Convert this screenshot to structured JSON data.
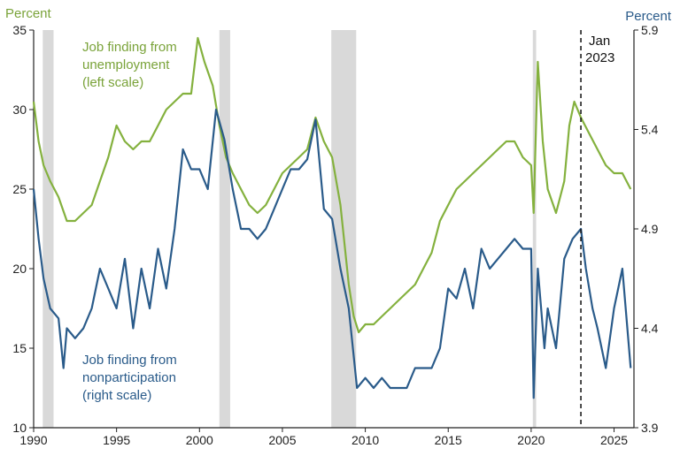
{
  "chart_data": {
    "type": "line",
    "left_axis_title": "Percent",
    "right_axis_title": "Percent",
    "x_range": [
      1990,
      2026.2
    ],
    "x_ticks": [
      "1990",
      "1995",
      "2000",
      "2005",
      "2010",
      "2015",
      "2020",
      "2025"
    ],
    "y_left_range": [
      10,
      35
    ],
    "y_left_ticks": [
      "10",
      "15",
      "20",
      "25",
      "30",
      "35"
    ],
    "y_right_range": [
      3.9,
      5.9
    ],
    "y_right_ticks": [
      "3.9",
      "4.4",
      "4.9",
      "5.4",
      "5.9"
    ],
    "grid": false,
    "recessions": [
      [
        1990.55,
        1991.2
      ],
      [
        2001.2,
        2001.85
      ],
      [
        2007.95,
        2009.45
      ],
      [
        2020.1,
        2020.3
      ]
    ],
    "marker": {
      "x": 2023.0,
      "label_line1": "Jan",
      "label_line2": "2023"
    },
    "colors": {
      "green": "#84b13e",
      "blue": "#2a5b8a",
      "recession": "#d9d9d9",
      "axis": "#222222"
    },
    "series": [
      {
        "name": "Job finding from unemployment (left scale)",
        "label_lines": [
          "Job finding from",
          "unemployment",
          "(left scale)"
        ],
        "axis": "left",
        "color": "#84b13e",
        "points": [
          [
            1990,
            30.5
          ],
          [
            1990.3,
            28
          ],
          [
            1990.6,
            26.5
          ],
          [
            1991,
            25.5
          ],
          [
            1991.5,
            24.5
          ],
          [
            1992,
            23
          ],
          [
            1992.5,
            23
          ],
          [
            1993,
            23.5
          ],
          [
            1993.5,
            24
          ],
          [
            1994,
            25.5
          ],
          [
            1994.5,
            27
          ],
          [
            1995,
            29
          ],
          [
            1995.5,
            28
          ],
          [
            1996,
            27.5
          ],
          [
            1996.5,
            28
          ],
          [
            1997,
            28
          ],
          [
            1997.5,
            29
          ],
          [
            1998,
            30
          ],
          [
            1998.5,
            30.5
          ],
          [
            1999,
            31
          ],
          [
            1999.5,
            31
          ],
          [
            1999.9,
            34.5
          ],
          [
            2000.3,
            33
          ],
          [
            2000.8,
            31.5
          ],
          [
            2001.2,
            29
          ],
          [
            2001.6,
            27
          ],
          [
            2002,
            26
          ],
          [
            2002.5,
            25
          ],
          [
            2003,
            24
          ],
          [
            2003.5,
            23.5
          ],
          [
            2004,
            24
          ],
          [
            2004.5,
            25
          ],
          [
            2005,
            26
          ],
          [
            2005.5,
            26.5
          ],
          [
            2006,
            27
          ],
          [
            2006.5,
            27.5
          ],
          [
            2007,
            29.5
          ],
          [
            2007.5,
            28
          ],
          [
            2008,
            27
          ],
          [
            2008.5,
            24
          ],
          [
            2009,
            19
          ],
          [
            2009.3,
            17
          ],
          [
            2009.6,
            16
          ],
          [
            2010,
            16.5
          ],
          [
            2010.5,
            16.5
          ],
          [
            2011,
            17
          ],
          [
            2011.5,
            17.5
          ],
          [
            2012,
            18
          ],
          [
            2012.5,
            18.5
          ],
          [
            2013,
            19
          ],
          [
            2013.5,
            20
          ],
          [
            2014,
            21
          ],
          [
            2014.5,
            23
          ],
          [
            2015,
            24
          ],
          [
            2015.5,
            25
          ],
          [
            2016,
            25.5
          ],
          [
            2016.5,
            26
          ],
          [
            2017,
            26.5
          ],
          [
            2017.5,
            27
          ],
          [
            2018,
            27.5
          ],
          [
            2018.5,
            28
          ],
          [
            2019,
            28
          ],
          [
            2019.5,
            27
          ],
          [
            2020,
            26.5
          ],
          [
            2020.15,
            23.5
          ],
          [
            2020.4,
            33
          ],
          [
            2020.7,
            28
          ],
          [
            2021,
            25
          ],
          [
            2021.5,
            23.5
          ],
          [
            2022,
            25.5
          ],
          [
            2022.3,
            29
          ],
          [
            2022.6,
            30.5
          ],
          [
            2023,
            29.5
          ],
          [
            2023.5,
            28.5
          ],
          [
            2024,
            27.5
          ],
          [
            2024.5,
            26.5
          ],
          [
            2025,
            26
          ],
          [
            2025.5,
            26
          ],
          [
            2026,
            25
          ]
        ]
      },
      {
        "name": "Job finding from nonparticipation (right scale)",
        "label_lines": [
          "Job finding from",
          "nonparticipation",
          "(right scale)"
        ],
        "axis": "right",
        "color": "#2a5b8a",
        "points": [
          [
            1990,
            5.1
          ],
          [
            1990.3,
            4.85
          ],
          [
            1990.6,
            4.65
          ],
          [
            1991,
            4.5
          ],
          [
            1991.5,
            4.45
          ],
          [
            1991.8,
            4.2
          ],
          [
            1992,
            4.4
          ],
          [
            1992.5,
            4.35
          ],
          [
            1993,
            4.4
          ],
          [
            1993.5,
            4.5
          ],
          [
            1994,
            4.7
          ],
          [
            1994.5,
            4.6
          ],
          [
            1995,
            4.5
          ],
          [
            1995.5,
            4.75
          ],
          [
            1996,
            4.4
          ],
          [
            1996.5,
            4.7
          ],
          [
            1997,
            4.5
          ],
          [
            1997.5,
            4.8
          ],
          [
            1998,
            4.6
          ],
          [
            1998.5,
            4.9
          ],
          [
            1999,
            5.3
          ],
          [
            1999.5,
            5.2
          ],
          [
            2000,
            5.2
          ],
          [
            2000.5,
            5.1
          ],
          [
            2001,
            5.5
          ],
          [
            2001.5,
            5.35
          ],
          [
            2002,
            5.1
          ],
          [
            2002.5,
            4.9
          ],
          [
            2003,
            4.9
          ],
          [
            2003.5,
            4.85
          ],
          [
            2004,
            4.9
          ],
          [
            2004.5,
            5.0
          ],
          [
            2005,
            5.1
          ],
          [
            2005.5,
            5.2
          ],
          [
            2006,
            5.2
          ],
          [
            2006.5,
            5.25
          ],
          [
            2007,
            5.45
          ],
          [
            2007.5,
            5.0
          ],
          [
            2008,
            4.95
          ],
          [
            2008.5,
            4.7
          ],
          [
            2009,
            4.5
          ],
          [
            2009.5,
            4.1
          ],
          [
            2010,
            4.15
          ],
          [
            2010.5,
            4.1
          ],
          [
            2011,
            4.15
          ],
          [
            2011.5,
            4.1
          ],
          [
            2012,
            4.1
          ],
          [
            2012.5,
            4.1
          ],
          [
            2013,
            4.2
          ],
          [
            2013.5,
            4.2
          ],
          [
            2014,
            4.2
          ],
          [
            2014.5,
            4.3
          ],
          [
            2015,
            4.6
          ],
          [
            2015.5,
            4.55
          ],
          [
            2016,
            4.7
          ],
          [
            2016.5,
            4.5
          ],
          [
            2017,
            4.8
          ],
          [
            2017.5,
            4.7
          ],
          [
            2018,
            4.75
          ],
          [
            2018.5,
            4.8
          ],
          [
            2019,
            4.85
          ],
          [
            2019.5,
            4.8
          ],
          [
            2020,
            4.8
          ],
          [
            2020.15,
            4.05
          ],
          [
            2020.4,
            4.7
          ],
          [
            2020.8,
            4.3
          ],
          [
            2021,
            4.5
          ],
          [
            2021.5,
            4.3
          ],
          [
            2022,
            4.75
          ],
          [
            2022.5,
            4.85
          ],
          [
            2023,
            4.9
          ],
          [
            2023.3,
            4.7
          ],
          [
            2023.7,
            4.5
          ],
          [
            2024,
            4.4
          ],
          [
            2024.5,
            4.2
          ],
          [
            2025,
            4.5
          ],
          [
            2025.5,
            4.7
          ],
          [
            2026,
            4.2
          ]
        ]
      }
    ]
  }
}
